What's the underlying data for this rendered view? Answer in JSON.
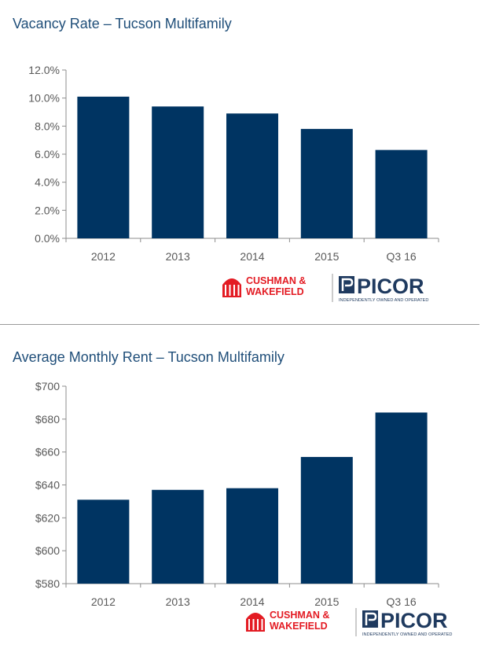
{
  "chart_data": [
    {
      "type": "bar",
      "title": "Vacancy Rate – Tucson Multifamily",
      "categories": [
        "2012",
        "2013",
        "2014",
        "2015",
        "Q3 16"
      ],
      "values": [
        10.1,
        9.4,
        8.9,
        7.8,
        6.3
      ],
      "ylim": [
        0,
        12
      ],
      "yticks": [
        "0.0%",
        "2.0%",
        "4.0%",
        "6.0%",
        "8.0%",
        "10.0%",
        "12.0%"
      ],
      "ytick_values": [
        0,
        2,
        4,
        6,
        8,
        10,
        12
      ],
      "xlabel": "",
      "ylabel": "",
      "color": "#003462"
    },
    {
      "type": "bar",
      "title": "Average Monthly Rent – Tucson Multifamily",
      "categories": [
        "2012",
        "2013",
        "2014",
        "2015",
        "Q3 16"
      ],
      "values": [
        631,
        637,
        638,
        657,
        684
      ],
      "ylim": [
        580,
        700
      ],
      "yticks": [
        "$580",
        "$600",
        "$620",
        "$640",
        "$660",
        "$680",
        "$700"
      ],
      "ytick_values": [
        580,
        600,
        620,
        640,
        660,
        680,
        700
      ],
      "xlabel": "",
      "ylabel": "",
      "color": "#003462"
    }
  ],
  "logo": {
    "cw_line1": "CUSHMAN &",
    "cw_line2": "WAKEFIELD",
    "picor": "PICOR",
    "picor_tagline": "INDEPENDENTLY OWNED AND OPERATED",
    "cw_color": "#e31b23",
    "picor_color": "#1f3a5f"
  }
}
